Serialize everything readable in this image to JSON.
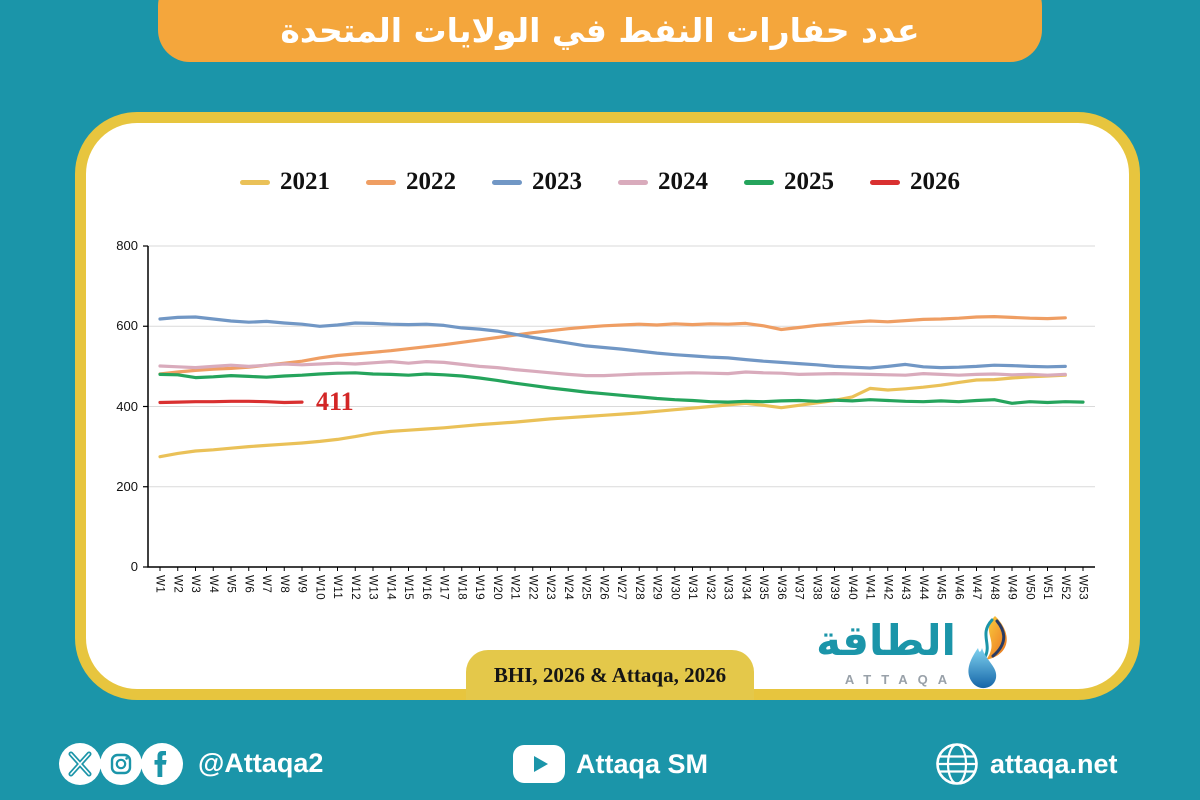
{
  "header": {
    "title": "عدد حفارات النفط في الولايات المتحدة"
  },
  "chart_data": {
    "type": "line",
    "title": "عدد حفارات النفط في الولايات المتحدة",
    "xlabel": "",
    "ylabel": "",
    "ylim": [
      0,
      800
    ],
    "yticks": [
      0,
      200,
      400,
      600,
      800
    ],
    "grid": true,
    "legend_position": "top",
    "categories": [
      "W1",
      "W2",
      "W3",
      "W4",
      "W5",
      "W6",
      "W7",
      "W8",
      "W9",
      "W10",
      "W11",
      "W12",
      "W13",
      "W14",
      "W15",
      "W16",
      "W17",
      "W18",
      "W19",
      "W20",
      "W21",
      "W22",
      "W23",
      "W24",
      "W25",
      "W26",
      "W27",
      "W28",
      "W29",
      "W30",
      "W31",
      "W32",
      "W33",
      "W34",
      "W35",
      "W36",
      "W37",
      "W38",
      "W39",
      "W40",
      "W41",
      "W42",
      "W43",
      "W44",
      "W45",
      "W46",
      "W47",
      "W48",
      "W49",
      "W50",
      "W51",
      "W52",
      "W53"
    ],
    "series": [
      {
        "name": "2021",
        "color": "#eac158",
        "values": [
          275,
          283,
          289,
          292,
          296,
          300,
          303,
          306,
          309,
          313,
          318,
          325,
          333,
          338,
          341,
          344,
          347,
          351,
          355,
          358,
          361,
          365,
          369,
          372,
          375,
          378,
          381,
          384,
          388,
          392,
          396,
          400,
          404,
          408,
          403,
          397,
          403,
          409,
          415,
          424,
          445,
          441,
          444,
          448,
          453,
          460,
          466,
          467,
          471,
          474,
          476,
          478
        ]
      },
      {
        "name": "2022",
        "color": "#ef9e63",
        "values": [
          481,
          486,
          490,
          493,
          495,
          498,
          503,
          508,
          513,
          521,
          527,
          531,
          535,
          539,
          544,
          549,
          554,
          560,
          566,
          572,
          578,
          584,
          589,
          594,
          598,
          601,
          603,
          605,
          603,
          606,
          604,
          606,
          605,
          607,
          601,
          592,
          597,
          602,
          606,
          610,
          613,
          611,
          614,
          617,
          618,
          620,
          623,
          624,
          622,
          620,
          619,
          621
        ]
      },
      {
        "name": "2023",
        "color": "#7197c5",
        "values": [
          618,
          622,
          623,
          618,
          613,
          610,
          612,
          608,
          605,
          600,
          603,
          608,
          607,
          605,
          604,
          605,
          602,
          596,
          593,
          588,
          580,
          572,
          565,
          558,
          551,
          547,
          543,
          538,
          533,
          529,
          526,
          523,
          521,
          517,
          513,
          510,
          507,
          504,
          500,
          498,
          496,
          500,
          505,
          499,
          497,
          498,
          500,
          503,
          502,
          500,
          499,
          500
        ]
      },
      {
        "name": "2024",
        "color": "#d9abbc",
        "values": [
          501,
          499,
          497,
          500,
          503,
          500,
          503,
          506,
          504,
          506,
          508,
          506,
          509,
          512,
          508,
          512,
          510,
          505,
          500,
          497,
          492,
          488,
          484,
          480,
          477,
          477,
          479,
          481,
          482,
          483,
          484,
          483,
          482,
          486,
          484,
          483,
          480,
          481,
          482,
          481,
          480,
          479,
          478,
          482,
          480,
          478,
          480,
          481,
          479,
          480,
          478,
          480
        ]
      },
      {
        "name": "2025",
        "color": "#25a45c",
        "values": [
          480,
          479,
          472,
          474,
          477,
          475,
          473,
          476,
          478,
          481,
          483,
          484,
          481,
          480,
          478,
          481,
          479,
          476,
          471,
          465,
          458,
          452,
          446,
          441,
          436,
          432,
          428,
          424,
          420,
          417,
          415,
          412,
          411,
          413,
          412,
          414,
          415,
          413,
          416,
          414,
          417,
          415,
          413,
          412,
          414,
          412,
          415,
          417,
          408,
          412,
          410,
          412,
          411
        ]
      },
      {
        "name": "2026",
        "color": "#d93030",
        "values": [
          410,
          411,
          412,
          412,
          413,
          413,
          412,
          410,
          411
        ]
      }
    ],
    "annotation": {
      "text": "411",
      "series": "2026",
      "color": "#d32626"
    }
  },
  "source_badge": {
    "label": "BHI, 2026 & Attaqa, 2026"
  },
  "logo": {
    "arabic": "الطاقة",
    "latin": "ATTAQA"
  },
  "footer": {
    "handle": "@Attaqa2",
    "youtube": "Attaqa SM",
    "website": "attaqa.net"
  },
  "colors": {
    "background_teal": "#1b95a9",
    "banner_orange": "#f4a63c",
    "card_border_yellow": "#e7c53e",
    "badge_yellow": "#e4c84a",
    "gridline": "#dadada",
    "annotation_red": "#d32626",
    "logo_teal": "#1b95a9",
    "logo_gray": "#99a1a9"
  }
}
